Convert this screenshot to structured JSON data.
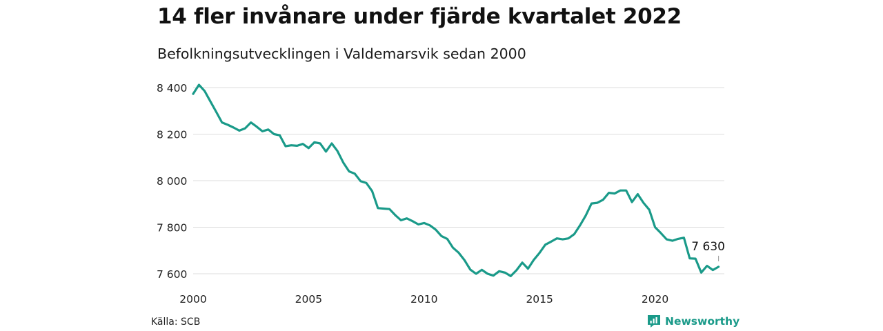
{
  "title": "14 fler invånare under fjärde kvartalet 2022",
  "subtitle": "Befolkningsutvecklingen i Valdemarsvik sedan 2000",
  "source": "Källa: SCB",
  "brand": {
    "name": "Newsworthy",
    "icon": "newsworthy-logo-icon",
    "color": "#1a9a89"
  },
  "chart_data": {
    "type": "line",
    "color": "#1a9a89",
    "grid": "horizontal",
    "ylim": [
      7600,
      8400
    ],
    "yticks": [
      7600,
      7800,
      8000,
      8200,
      8400
    ],
    "ytick_labels": [
      "7 600",
      "7 800",
      "8 000",
      "8 200",
      "8 400"
    ],
    "xticks": [
      2000,
      2005,
      2010,
      2015,
      2020
    ],
    "xtick_labels": [
      "2000",
      "2005",
      "2010",
      "2015",
      "2020"
    ],
    "end_label": "7 630",
    "series": [
      {
        "x": [
          2000.0,
          2000.25,
          2000.5,
          2000.75,
          2001.0,
          2001.25,
          2001.5,
          2001.75,
          2002.0,
          2002.25,
          2002.5,
          2002.75,
          2003.0,
          2003.25,
          2003.5,
          2003.75,
          2004.0,
          2004.25,
          2004.5,
          2004.75,
          2005.0,
          2005.25,
          2005.5,
          2005.75,
          2006.0,
          2006.25,
          2006.5,
          2006.75,
          2007.0,
          2007.25,
          2007.5,
          2007.75,
          2008.0,
          2008.25,
          2008.5,
          2008.75,
          2009.0,
          2009.25,
          2009.5,
          2009.75,
          2010.0,
          2010.25,
          2010.5,
          2010.75,
          2011.0,
          2011.25,
          2011.5,
          2011.75,
          2012.0,
          2012.25,
          2012.5,
          2012.75,
          2013.0,
          2013.25,
          2013.5,
          2013.75,
          2014.0,
          2014.25,
          2014.5,
          2014.75,
          2015.0,
          2015.25,
          2015.5,
          2015.75,
          2016.0,
          2016.25,
          2016.5,
          2016.75,
          2017.0,
          2017.25,
          2017.5,
          2017.75,
          2018.0,
          2018.25,
          2018.5,
          2018.75,
          2019.0,
          2019.25,
          2019.5,
          2019.75,
          2020.0,
          2020.25,
          2020.5,
          2020.75,
          2021.0,
          2021.25,
          2021.5,
          2021.75,
          2022.0,
          2022.25,
          2022.5,
          2022.75
        ],
        "values": [
          8373,
          8412,
          8385,
          8340,
          8295,
          8250,
          8240,
          8228,
          8215,
          8225,
          8250,
          8232,
          8212,
          8220,
          8200,
          8195,
          8148,
          8152,
          8150,
          8158,
          8140,
          8165,
          8160,
          8125,
          8160,
          8127,
          8078,
          8040,
          8030,
          7998,
          7990,
          7955,
          7882,
          7880,
          7878,
          7852,
          7830,
          7838,
          7826,
          7812,
          7818,
          7808,
          7790,
          7762,
          7750,
          7712,
          7690,
          7658,
          7618,
          7600,
          7617,
          7600,
          7592,
          7611,
          7605,
          7590,
          7615,
          7648,
          7622,
          7660,
          7690,
          7725,
          7738,
          7752,
          7748,
          7752,
          7770,
          7808,
          7850,
          7902,
          7905,
          7918,
          7948,
          7945,
          7958,
          7958,
          7908,
          7942,
          7905,
          7875,
          7800,
          7775,
          7748,
          7742,
          7750,
          7755,
          7666,
          7665,
          7605,
          7634,
          7616,
          7630
        ]
      }
    ]
  }
}
